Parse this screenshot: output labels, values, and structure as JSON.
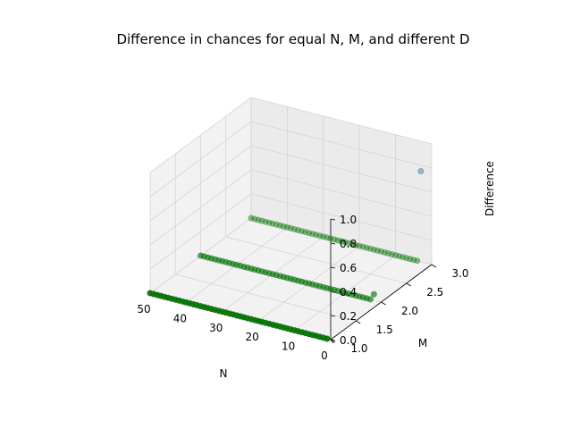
{
  "chart_data": {
    "type": "scatter",
    "title": "Difference in chances for equal N, M, and different D",
    "xlabel": "N",
    "ylabel": "M",
    "zlabel": "Difference",
    "xlim": [
      0,
      50
    ],
    "ylim": [
      1.0,
      3.0
    ],
    "zlim": [
      0.0,
      1.0
    ],
    "x_ticks": [
      0,
      10,
      20,
      30,
      40,
      50
    ],
    "x_tick_labels": [
      "0",
      "10",
      "20",
      "30",
      "40",
      "50"
    ],
    "y_ticks": [
      1.0,
      1.5,
      2.0,
      2.5,
      3.0
    ],
    "y_tick_labels": [
      "1.0",
      "1.5",
      "2.0",
      "2.5",
      "3.0"
    ],
    "z_ticks": [
      0.0,
      0.2,
      0.4,
      0.6,
      0.8,
      1.0
    ],
    "z_tick_labels": [
      "0.0",
      "0.2",
      "0.4",
      "0.6",
      "0.8",
      "1.0"
    ],
    "grid": true,
    "colors": {
      "low": "#008000",
      "high": "#1f77b4"
    },
    "series": [
      {
        "m": 1,
        "n_start": 1,
        "n_end": 50,
        "highlight": []
      },
      {
        "m": 2,
        "n_start": 2,
        "n_end": 50,
        "highlight": [
          {
            "n": 2,
            "value": 0.05
          }
        ]
      },
      {
        "m": 3,
        "n_start": 3,
        "n_end": 50,
        "highlight": [
          {
            "n": 3,
            "value": 0.75
          }
        ]
      }
    ],
    "base_value": 0.0
  }
}
